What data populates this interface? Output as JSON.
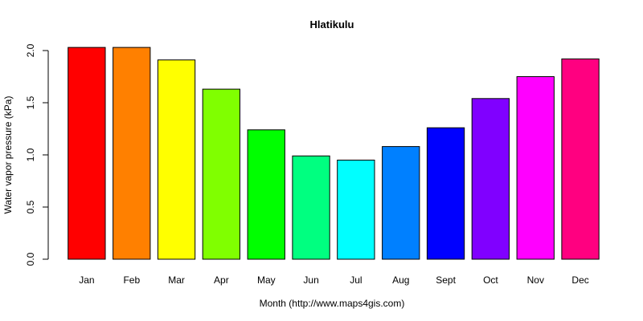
{
  "chart_data": {
    "type": "bar",
    "title": "Hlatikulu",
    "xlabel": "Month (http://www.maps4gis.com)",
    "ylabel": "Water vapor pressure (kPa)",
    "categories": [
      "Jan",
      "Feb",
      "Mar",
      "Apr",
      "May",
      "Jun",
      "Jul",
      "Aug",
      "Sept",
      "Oct",
      "Nov",
      "Dec"
    ],
    "values": [
      2.03,
      2.03,
      1.91,
      1.63,
      1.24,
      0.99,
      0.95,
      1.08,
      1.26,
      1.54,
      1.75,
      1.92
    ],
    "colors": [
      "#ff0000",
      "#ff8000",
      "#ffff00",
      "#80ff00",
      "#00ff00",
      "#00ff80",
      "#00ffff",
      "#0080ff",
      "#0000ff",
      "#8000ff",
      "#ff00ff",
      "#ff0080"
    ],
    "y_ticks": [
      "0.0",
      "0.5",
      "1.0",
      "1.5",
      "2.0"
    ],
    "ylim": [
      0,
      2.0
    ],
    "grid": false,
    "legend": "none"
  }
}
